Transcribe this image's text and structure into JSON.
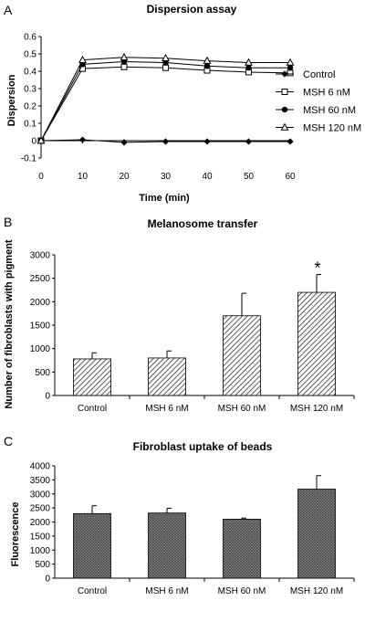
{
  "chart_data": [
    {
      "panel": "A",
      "type": "line",
      "title": "Dispersion assay",
      "xlabel": "Time (min)",
      "ylabel": "Dispersion",
      "xlim": [
        0,
        60
      ],
      "ylim": [
        -0.1,
        0.6
      ],
      "x_ticks": [
        "0",
        "10",
        "20",
        "30",
        "40",
        "50",
        "60"
      ],
      "y_ticks": [
        "0.6",
        "0.5",
        "0.4",
        "0.3",
        "0.2",
        "0.1",
        "0",
        "-0.1"
      ],
      "x": [
        0,
        10,
        20,
        30,
        40,
        50,
        60
      ],
      "series": [
        {
          "name": "Control",
          "marker": "diamond",
          "values": [
            0,
            0.005,
            -0.01,
            -0.005,
            -0.005,
            -0.005,
            -0.005
          ],
          "errors": [
            0,
            0.008,
            0.008,
            0,
            0,
            0,
            0.006
          ]
        },
        {
          "name": "MSH 6 nM",
          "marker": "square-open",
          "values": [
            0,
            0.415,
            0.425,
            0.42,
            0.405,
            0.395,
            0.39
          ]
        },
        {
          "name": "MSH 60 nM",
          "marker": "circle",
          "values": [
            0,
            0.44,
            0.455,
            0.45,
            0.43,
            0.42,
            0.42
          ]
        },
        {
          "name": "MSH 120 nM",
          "marker": "triangle-open",
          "values": [
            0,
            0.465,
            0.48,
            0.475,
            0.46,
            0.45,
            0.45
          ]
        }
      ],
      "legend": "right"
    },
    {
      "panel": "B",
      "type": "bar",
      "title": "Melanosome transfer",
      "ylabel": "Number of fibroblasts with pigment",
      "ylim": [
        0,
        3000
      ],
      "y_ticks": [
        "3000",
        "2500",
        "2000",
        "1500",
        "1000",
        "500",
        "0"
      ],
      "categories": [
        "Control",
        "MSH 6 nM",
        "MSH 60 nM",
        "MSH 120 nM"
      ],
      "values": [
        780,
        800,
        1700,
        2200
      ],
      "errors": [
        130,
        150,
        480,
        380
      ],
      "annotation": "*",
      "fill": "hatched"
    },
    {
      "panel": "C",
      "type": "bar",
      "title": "Fibroblast uptake of beads",
      "ylabel": "Fluorescence",
      "ylim": [
        0,
        4000
      ],
      "y_ticks": [
        "4000",
        "3500",
        "3000",
        "2500",
        "2000",
        "1500",
        "1000",
        "500",
        "0"
      ],
      "categories": [
        "Control",
        "MSH 6 nM",
        "MSH 60 nM",
        "MSH 120 nM"
      ],
      "values": [
        2300,
        2320,
        2100,
        3170
      ],
      "errors": [
        280,
        170,
        40,
        480
      ],
      "fill": "crosshatched"
    }
  ]
}
